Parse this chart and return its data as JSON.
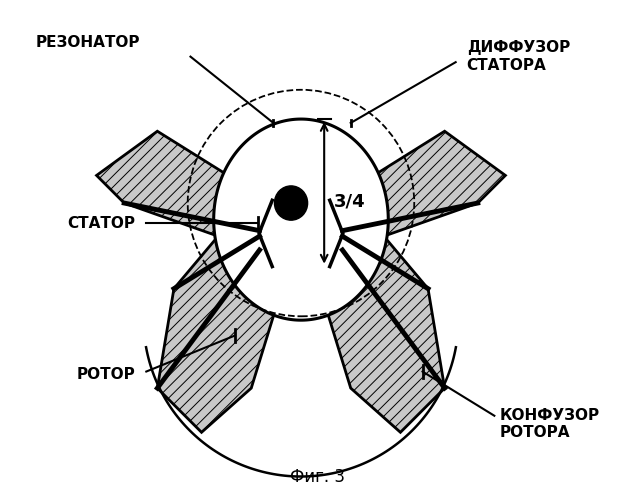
{
  "title": "Фиг. 3",
  "labels": {
    "resonator": "РЕЗОНАТОР",
    "diffusor": "ДИФФУЗОР\nСТАТОРА",
    "stator": "СТАТОР",
    "rotor": "РОТОР",
    "konfuzor": "КОНФУЗОР\nРОТОРА",
    "dim_label": "3/4"
  },
  "bg_color": "#ffffff"
}
